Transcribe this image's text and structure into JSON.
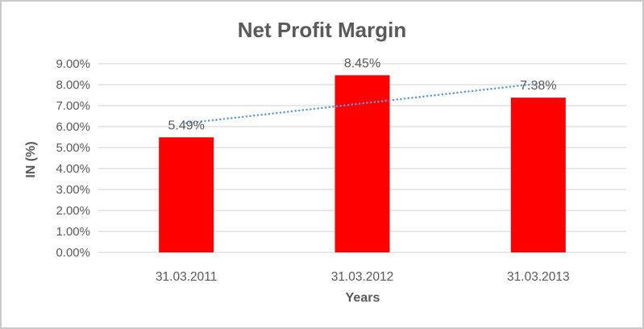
{
  "chart_data": {
    "type": "bar",
    "title": "Net Profit Margin",
    "xlabel": "Years",
    "ylabel": "IN (%)",
    "categories": [
      "31.03.2011",
      "31.03.2012",
      "31.03.2013"
    ],
    "values": [
      5.49,
      8.45,
      7.38
    ],
    "data_labels": [
      "5.49%",
      "8.45%",
      "7.38%"
    ],
    "ytick_labels": [
      "0.00%",
      "1.00%",
      "2.00%",
      "3.00%",
      "4.00%",
      "5.00%",
      "6.00%",
      "7.00%",
      "8.00%",
      "9.00%"
    ],
    "ylim": [
      0,
      9
    ],
    "ytick_step": 1,
    "grid": true,
    "legend": "none",
    "trendline": {
      "type": "linear",
      "style": "dotted",
      "color": "#5B9BD5"
    },
    "colors": {
      "bar": "#FF0000",
      "text": "#595959",
      "gridline": "#D9D9D9",
      "border": "#C9C9C9"
    }
  }
}
